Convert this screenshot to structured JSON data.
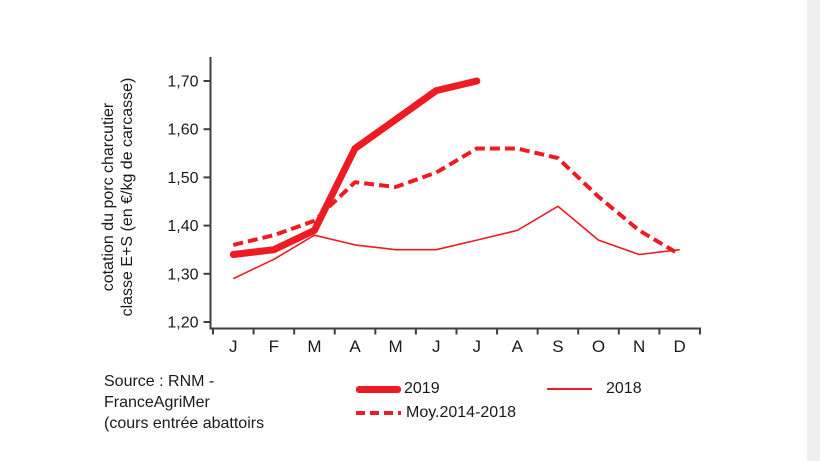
{
  "page": {
    "background_color": "#ffffff",
    "right_strip_color": "#efefef",
    "accent_color": "#ed1c24",
    "axis_color": "#3f3f3f",
    "text_color": "#1a1a1a"
  },
  "chart_data": {
    "type": "line",
    "title": "",
    "ylabel_line1": "cotation du porc charcutier",
    "ylabel_line2": "classe E+S (en €/kg de carcasse)",
    "xlabel": "",
    "categories": [
      "J",
      "F",
      "M",
      "A",
      "M",
      "J",
      "J",
      "A",
      "S",
      "O",
      "N",
      "D"
    ],
    "y_ticks": [
      "1,20",
      "1,30",
      "1,40",
      "1,50",
      "1,60",
      "1,70"
    ],
    "y_tick_values": [
      1.2,
      1.3,
      1.4,
      1.5,
      1.6,
      1.7
    ],
    "ylim": [
      1.19,
      1.75
    ],
    "grid": false,
    "legend_position": "bottom",
    "series": [
      {
        "name": "2019",
        "color": "#ed1c24",
        "line_width": 7,
        "dash": null,
        "values": [
          1.34,
          1.35,
          1.39,
          1.56,
          1.62,
          1.68,
          1.7,
          null,
          null,
          null,
          null,
          null
        ]
      },
      {
        "name": "2018",
        "color": "#ed1c24",
        "line_width": 1.6,
        "dash": null,
        "values": [
          1.29,
          1.33,
          1.38,
          1.36,
          1.35,
          1.35,
          1.37,
          1.39,
          1.44,
          1.37,
          1.34,
          1.35
        ]
      },
      {
        "name": "Moy.2014-2018",
        "color": "#ed1c24",
        "line_width": 4,
        "dash": "10 5",
        "values": [
          1.36,
          1.38,
          1.41,
          1.49,
          1.48,
          1.51,
          1.56,
          1.56,
          1.54,
          1.46,
          1.39,
          1.34
        ]
      }
    ]
  },
  "legend": {
    "items": [
      {
        "label": "2019",
        "style": "thick"
      },
      {
        "label": "2018",
        "style": "thin"
      },
      {
        "label": "Moy.2014-2018",
        "style": "dashed"
      }
    ]
  },
  "source": {
    "lines": [
      "Source : RNM -",
      "FranceAgriMer",
      " (cours entrée abattoirs"
    ]
  }
}
